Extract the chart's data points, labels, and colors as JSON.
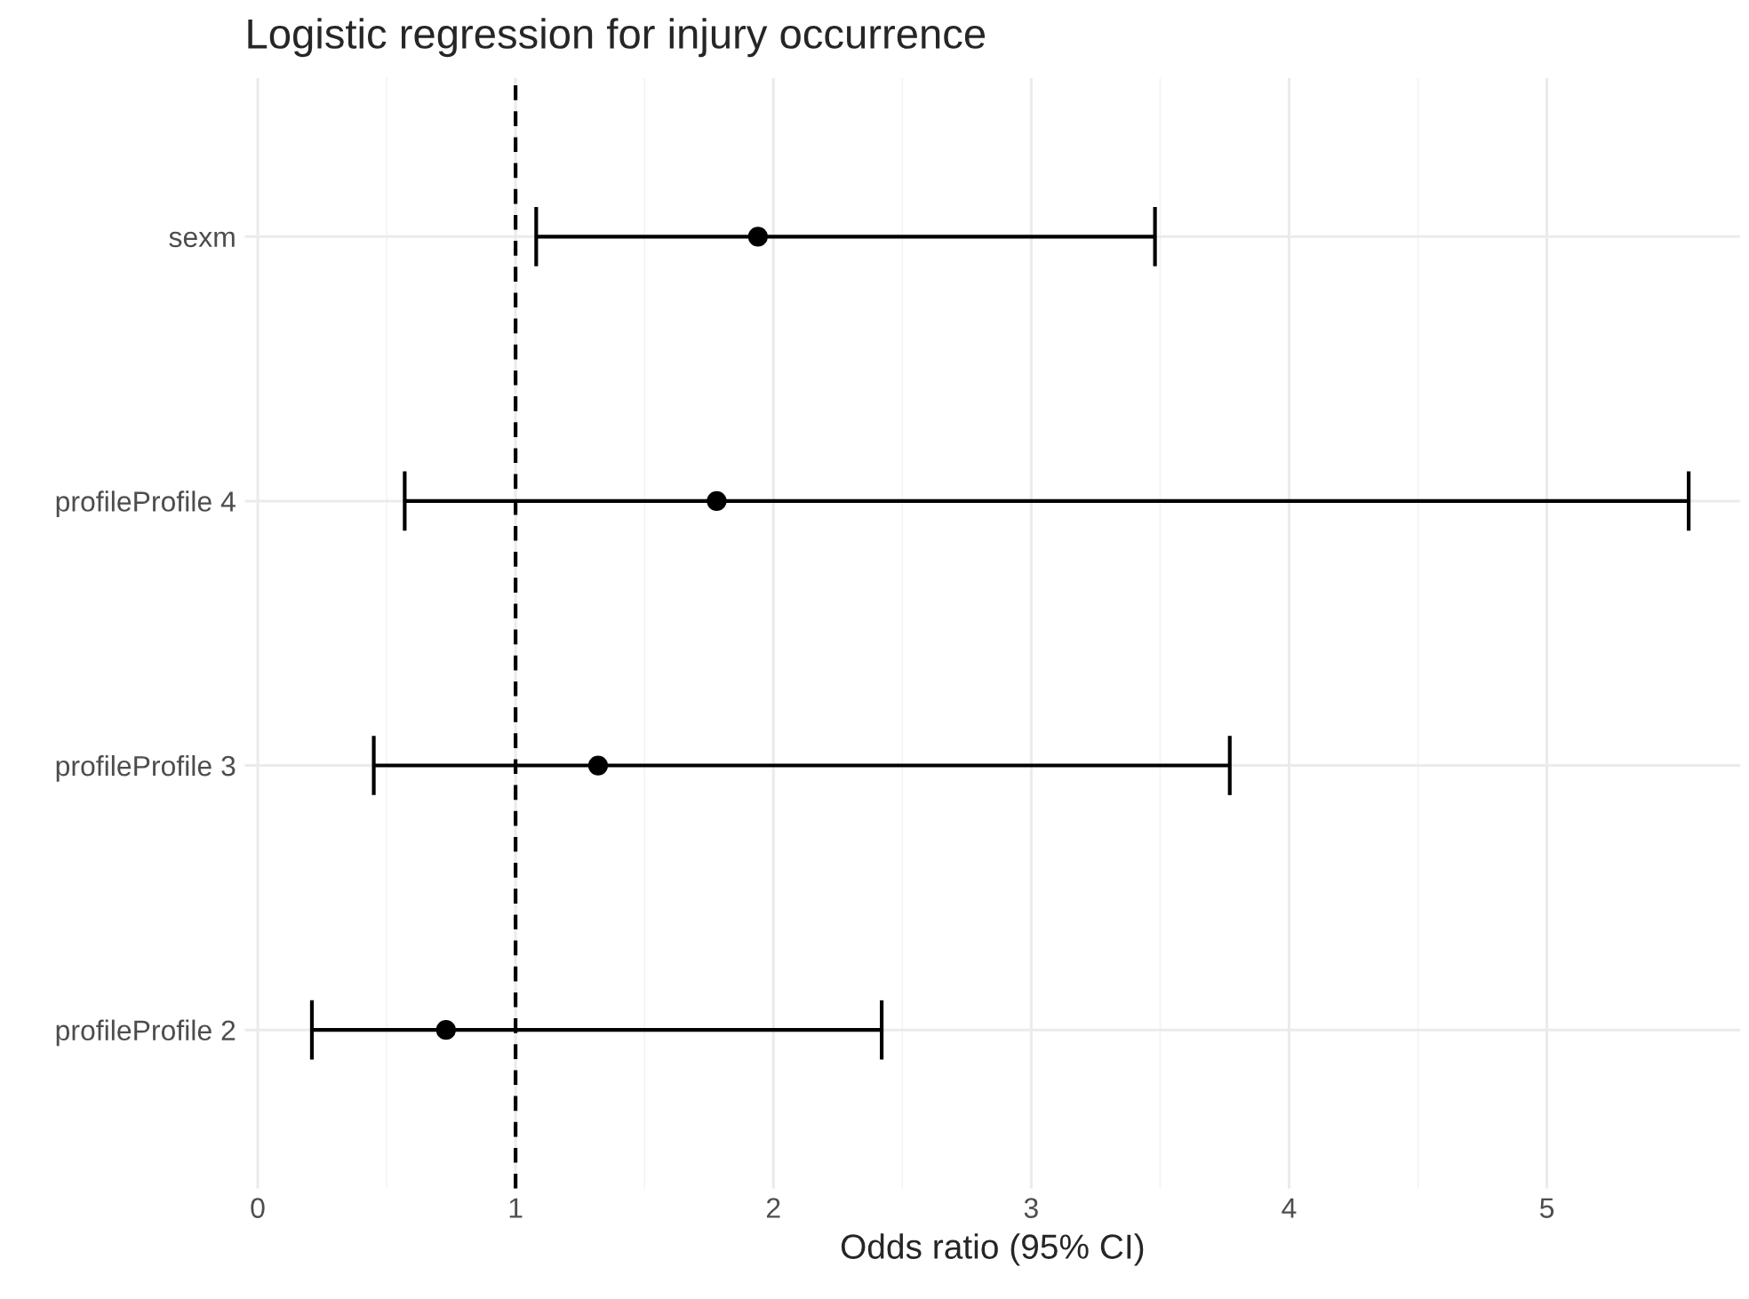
{
  "chart_data": {
    "type": "scatter",
    "orientation": "horizontal",
    "title": "Logistic regression for injury occurrence",
    "xlabel": "Odds ratio (95% CI)",
    "categories": [
      "sexm",
      "profileProfile 4",
      "profileProfile 3",
      "profileProfile 2"
    ],
    "values": [
      1.94,
      1.78,
      1.32,
      0.73
    ],
    "errors": [
      [
        1.08,
        3.48
      ],
      [
        0.57,
        5.55
      ],
      [
        0.45,
        3.77
      ],
      [
        0.21,
        2.42
      ]
    ],
    "color": "#000000",
    "marker": "circle",
    "xlim": [
      -0.05,
      5.75
    ],
    "xticks": [
      0,
      1,
      2,
      3,
      4,
      5
    ],
    "ref_lines": [
      {
        "axis": "x",
        "value": 1,
        "line_style": "dashed",
        "color": "#000000"
      }
    ],
    "grid": true,
    "legend": false
  }
}
